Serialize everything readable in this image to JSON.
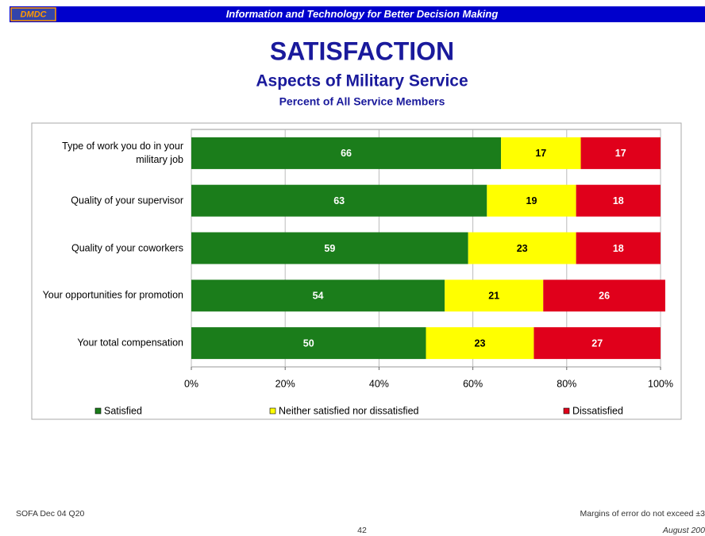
{
  "header": {
    "logo": "DMDC",
    "banner": "Information and Technology for Better Decision Making"
  },
  "chart_data": {
    "type": "stacked_barh",
    "title": "SATISFACTION",
    "subtitle": "Aspects of Military Service",
    "caption": "Percent of All Service Members",
    "categories": [
      "Type of work you do in your military job",
      "Quality of your supervisor",
      "Quality of your coworkers",
      "Your opportunities for promotion",
      "Your total compensation"
    ],
    "series": [
      {
        "name": "Satisfied",
        "color": "#1b7d1b",
        "label_color": "#ffffff",
        "values": [
          66,
          63,
          59,
          54,
          50
        ]
      },
      {
        "name": "Neither satisfied nor dissatisfied",
        "color": "#ffff00",
        "label_color": "#000000",
        "values": [
          17,
          19,
          23,
          21,
          23
        ]
      },
      {
        "name": "Dissatisfied",
        "color": "#e0001b",
        "label_color": "#ffffff",
        "values": [
          17,
          18,
          18,
          26,
          27
        ]
      }
    ],
    "xlim": [
      0,
      100
    ],
    "xticks": [
      {
        "value": 0,
        "label": "0%"
      },
      {
        "value": 20,
        "label": "20%"
      },
      {
        "value": 40,
        "label": "40%"
      },
      {
        "value": 60,
        "label": "60%"
      },
      {
        "value": 80,
        "label": "80%"
      },
      {
        "value": 100,
        "label": "100%"
      }
    ],
    "grid": true,
    "legend": "bottom"
  },
  "footer": {
    "source": "SOFA Dec 04 Q20",
    "note": "Margins of error do not exceed ±3",
    "page": "42",
    "date": "August 200"
  }
}
